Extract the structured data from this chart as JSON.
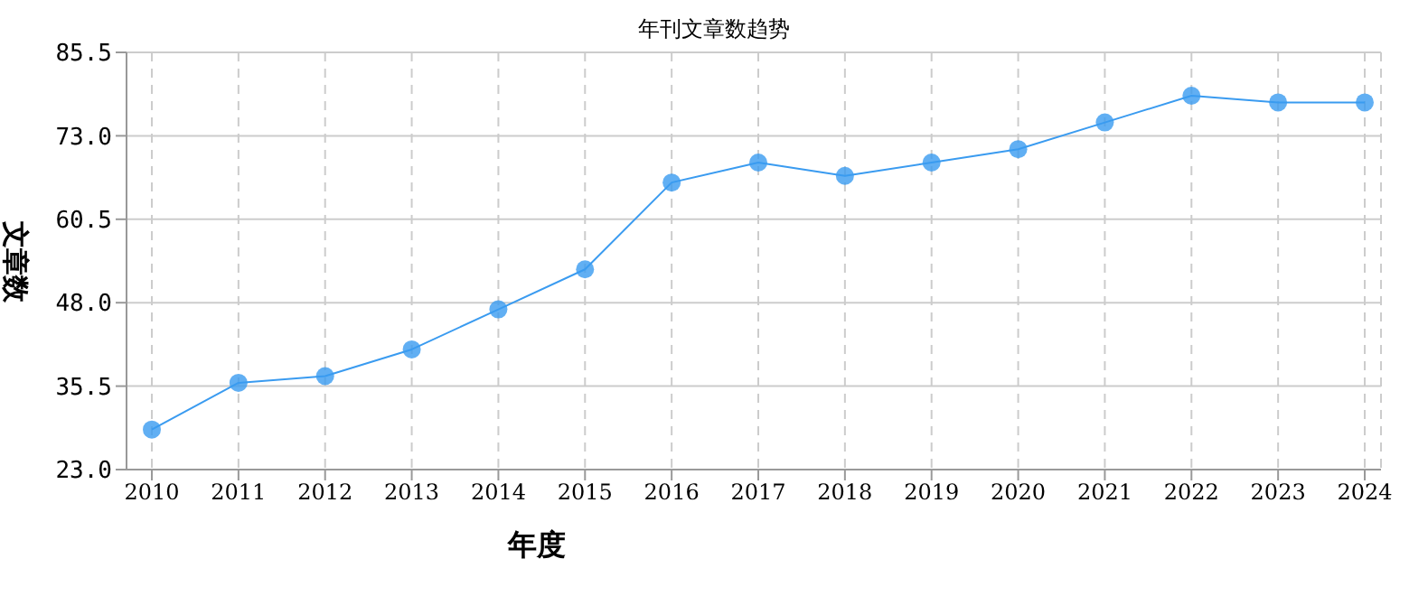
{
  "chart_data": {
    "type": "line",
    "title": "年刊文章数趋势",
    "xlabel": "年度",
    "ylabel": "文章数",
    "categories": [
      "2010",
      "2011",
      "2012",
      "2013",
      "2014",
      "2015",
      "2016",
      "2017",
      "2018",
      "2019",
      "2020",
      "2021",
      "2022",
      "2023",
      "2024"
    ],
    "series": [
      {
        "color": "#3a9bf0",
        "values": [
          29,
          36,
          37,
          41,
          47,
          53,
          66,
          69,
          67,
          69,
          71,
          75,
          79,
          78,
          78
        ]
      }
    ],
    "ylim": [
      23,
      85.5
    ],
    "yticks": [
      {
        "value": 23,
        "label": "23.0"
      },
      {
        "value": 35.5,
        "label": "35.5"
      },
      {
        "value": 48,
        "label": "48.0"
      },
      {
        "value": 60.5,
        "label": "60.5"
      },
      {
        "value": 73,
        "label": "73.0"
      },
      {
        "value": 85.5,
        "label": "85.5"
      }
    ],
    "grid": true,
    "marker": "circle",
    "line_style": "solid",
    "legend": false
  }
}
